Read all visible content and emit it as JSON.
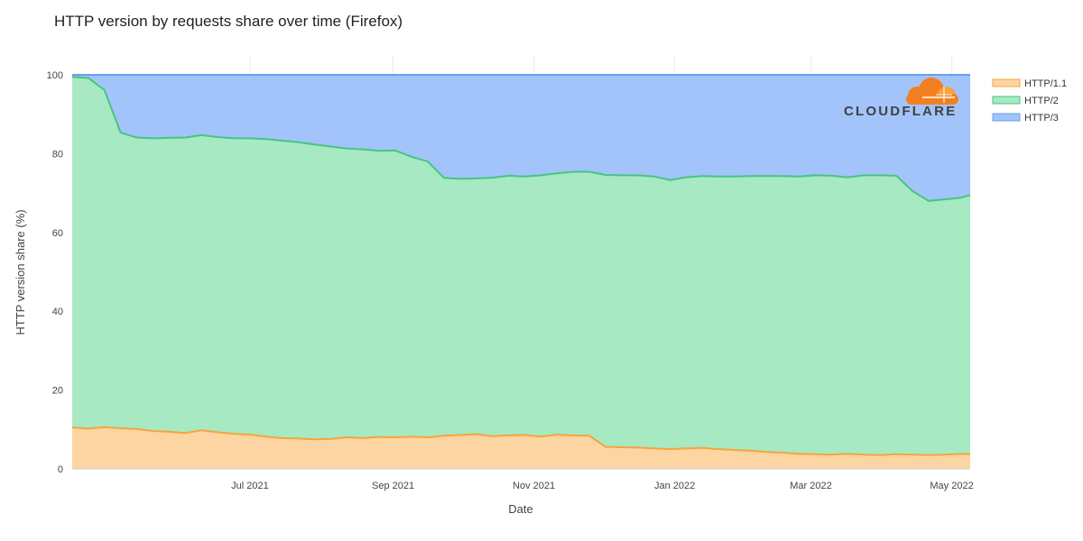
{
  "chart_data": {
    "type": "area",
    "stacked": true,
    "title": "HTTP version by requests share over time (Firefox)",
    "xlabel": "Date",
    "ylabel": "HTTP version share (%)",
    "ylim": [
      0,
      100
    ],
    "yticks": [
      "0",
      "20",
      "40",
      "60",
      "80",
      "100"
    ],
    "xticks": [
      "Jul 2021",
      "Sep 2021",
      "Nov 2021",
      "Jan 2022",
      "Mar 2022",
      "May 2022"
    ],
    "xlim": [
      "2021-04-15",
      "2022-05-09"
    ],
    "grid": true,
    "legend_position": "top-right",
    "x": [
      "2021-04-15",
      "2021-04-22",
      "2021-04-29",
      "2021-05-06",
      "2021-05-13",
      "2021-05-20",
      "2021-05-27",
      "2021-06-03",
      "2021-06-10",
      "2021-06-17",
      "2021-06-24",
      "2021-07-01",
      "2021-07-08",
      "2021-07-15",
      "2021-07-22",
      "2021-07-29",
      "2021-08-05",
      "2021-08-12",
      "2021-08-19",
      "2021-08-26",
      "2021-09-02",
      "2021-09-09",
      "2021-09-16",
      "2021-09-23",
      "2021-09-30",
      "2021-10-07",
      "2021-10-14",
      "2021-10-21",
      "2021-10-28",
      "2021-11-04",
      "2021-11-11",
      "2021-11-18",
      "2021-11-25",
      "2021-12-02",
      "2021-12-09",
      "2021-12-16",
      "2021-12-23",
      "2021-12-30",
      "2022-01-06",
      "2022-01-13",
      "2022-01-20",
      "2022-01-27",
      "2022-02-03",
      "2022-02-10",
      "2022-02-17",
      "2022-02-24",
      "2022-03-03",
      "2022-03-10",
      "2022-03-17",
      "2022-03-24",
      "2022-03-31",
      "2022-04-07",
      "2022-04-14",
      "2022-04-21",
      "2022-04-28",
      "2022-05-05",
      "2022-05-09"
    ],
    "series": [
      {
        "name": "HTTP/1.1",
        "color": "#f6a43c",
        "fill": "#fdd5a3",
        "values": [
          10.5,
          10.2,
          10.6,
          10.3,
          10.1,
          9.6,
          9.4,
          9.1,
          9.8,
          9.3,
          8.9,
          8.7,
          8.2,
          7.8,
          7.7,
          7.5,
          7.6,
          8.0,
          7.8,
          8.1,
          8.0,
          8.2,
          8.0,
          8.4,
          8.6,
          8.8,
          8.3,
          8.5,
          8.6,
          8.2,
          8.7,
          8.5,
          8.4,
          5.6,
          5.5,
          5.4,
          5.2,
          5.0,
          5.2,
          5.3,
          5.0,
          4.8,
          4.6,
          4.3,
          4.1,
          3.8,
          3.7,
          3.6,
          3.8,
          3.6,
          3.5,
          3.7,
          3.6,
          3.5,
          3.6,
          3.8,
          3.7
        ]
      },
      {
        "name": "HTTP/2",
        "color": "#48c482",
        "fill": "#a7e9c3",
        "values": [
          89.0,
          89.0,
          85.5,
          75.0,
          74.0,
          74.3,
          74.6,
          75.0,
          74.9,
          74.9,
          75.0,
          75.2,
          75.5,
          75.5,
          75.2,
          74.8,
          74.2,
          73.3,
          73.3,
          72.6,
          72.8,
          71.0,
          70.0,
          65.5,
          65.0,
          64.9,
          65.6,
          65.9,
          65.6,
          66.3,
          66.3,
          66.9,
          67.0,
          69.0,
          69.0,
          69.1,
          69.0,
          68.3,
          68.8,
          69.0,
          69.2,
          69.4,
          69.7,
          70.0,
          70.2,
          70.4,
          70.8,
          70.8,
          70.2,
          70.9,
          71.0,
          70.7,
          66.9,
          64.5,
          64.8,
          65.0,
          65.8
        ]
      },
      {
        "name": "HTTP/3",
        "color": "#6d9cf3",
        "fill": "#a2c4fa",
        "values": [
          0.5,
          0.8,
          3.9,
          14.7,
          15.9,
          16.1,
          16.0,
          15.9,
          15.3,
          15.8,
          16.1,
          16.1,
          16.3,
          16.7,
          17.1,
          17.7,
          18.2,
          18.7,
          18.9,
          19.3,
          19.2,
          20.8,
          22.0,
          26.1,
          26.4,
          26.3,
          26.1,
          25.6,
          25.8,
          25.5,
          25.0,
          24.6,
          24.6,
          25.4,
          25.5,
          25.5,
          25.8,
          26.7,
          26.0,
          25.7,
          25.8,
          25.8,
          25.7,
          25.7,
          25.7,
          25.8,
          25.5,
          25.6,
          26.0,
          25.5,
          25.5,
          25.6,
          29.5,
          32.0,
          31.6,
          31.2,
          30.5
        ]
      }
    ]
  },
  "brand": {
    "logo_text": "CLOUDFLARE",
    "logo_color": "#f38020"
  }
}
